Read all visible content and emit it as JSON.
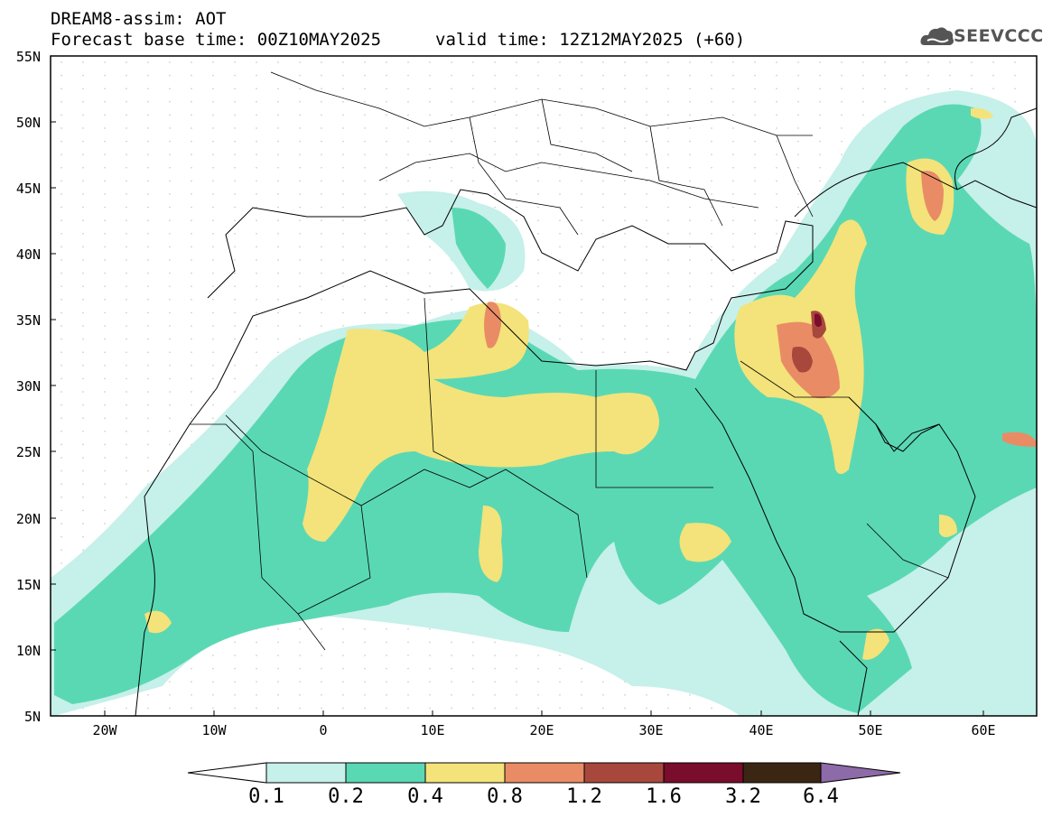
{
  "header": {
    "title": "DREAM8-assim: AOT",
    "base_time": "Forecast base time: 00Z10MAY2025",
    "valid_time": "valid time: 12Z12MAY2025 (+60)"
  },
  "logo": {
    "text": "SEEVCCC",
    "icon": "cloud-icon"
  },
  "map": {
    "product": "AOT",
    "lat_range": [
      5,
      55
    ],
    "lon_range": [
      -25,
      65
    ],
    "lat_labels": [
      "55N",
      "50N",
      "45N",
      "40N",
      "35N",
      "30N",
      "25N",
      "20N",
      "15N",
      "10N",
      "5N"
    ],
    "lon_labels": [
      "20W",
      "10W",
      "0",
      "10E",
      "20E",
      "30E",
      "40E",
      "50E",
      "60E"
    ]
  },
  "colorbar": {
    "levels": [
      "0.1",
      "0.2",
      "0.4",
      "0.8",
      "1.2",
      "1.6",
      "3.2",
      "6.4"
    ],
    "colors": [
      "#c6f0ea",
      "#5ad8b4",
      "#f3e37a",
      "#e98c66",
      "#a8483c",
      "#7a0c2c",
      "#3b2614",
      "#8d6aa8"
    ]
  }
}
